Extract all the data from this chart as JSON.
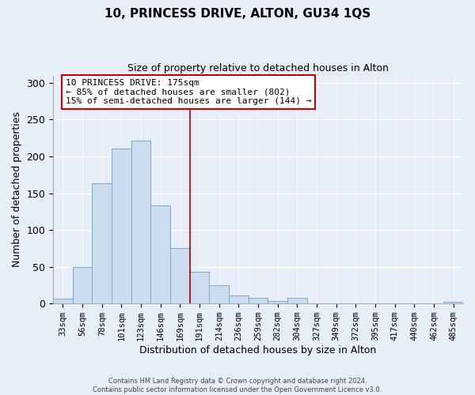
{
  "title": "10, PRINCESS DRIVE, ALTON, GU34 1QS",
  "subtitle": "Size of property relative to detached houses in Alton",
  "xlabel": "Distribution of detached houses by size in Alton",
  "ylabel": "Number of detached properties",
  "bar_labels": [
    "33sqm",
    "56sqm",
    "78sqm",
    "101sqm",
    "123sqm",
    "146sqm",
    "169sqm",
    "191sqm",
    "214sqm",
    "236sqm",
    "259sqm",
    "282sqm",
    "304sqm",
    "327sqm",
    "349sqm",
    "372sqm",
    "395sqm",
    "417sqm",
    "440sqm",
    "462sqm",
    "485sqm"
  ],
  "bar_values": [
    7,
    50,
    163,
    211,
    221,
    133,
    75,
    43,
    25,
    11,
    8,
    3,
    8,
    0,
    0,
    0,
    0,
    0,
    0,
    0,
    2
  ],
  "bar_color": "#ccddf0",
  "bar_edgecolor": "#7aaad0",
  "vline_x": 6.5,
  "vline_color": "#aa0000",
  "annotation_line1": "10 PRINCESS DRIVE: 175sqm",
  "annotation_line2": "← 85% of detached houses are smaller (802)",
  "annotation_line3": "15% of semi-detached houses are larger (144) →",
  "annotation_box_edgecolor": "#cc0000",
  "ylim": [
    0,
    310
  ],
  "yticks": [
    0,
    50,
    100,
    150,
    200,
    250,
    300
  ],
  "footer1": "Contains HM Land Registry data © Crown copyright and database right 2024.",
  "footer2": "Contains public sector information licensed under the Open Government Licence v3.0.",
  "background_color": "#e8eef8",
  "plot_background_color": "#e8eef8",
  "grid_color": "#ffffff",
  "title_fontsize": 11,
  "subtitle_fontsize": 9,
  "annotation_fontsize": 8,
  "tick_fontsize": 7.5,
  "axis_label_fontsize": 9
}
